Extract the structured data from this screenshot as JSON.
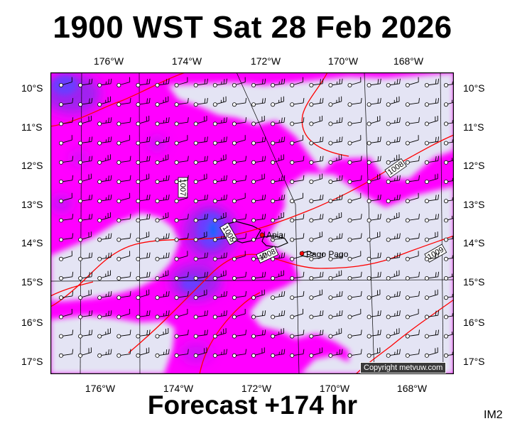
{
  "title": "1900 WST Sat 28 Feb 2026",
  "footer": "Forecast +174 hr",
  "corner_code": "IM2",
  "copyright": "Copyright metvuw.com",
  "lon_labels": [
    "176°W",
    "174°W",
    "172°W",
    "170°W",
    "168°W"
  ],
  "lat_labels": [
    "10°S",
    "11°S",
    "12°S",
    "13°S",
    "14°S",
    "15°S",
    "16°S",
    "17°S"
  ],
  "places": [
    {
      "name": "Apia",
      "lon": -171.76,
      "lat": -13.83
    },
    {
      "name": "Pago Pago",
      "lon": -170.7,
      "lat": -14.28
    }
  ],
  "isobars": [
    {
      "label": "1007",
      "pressure": 1007
    },
    {
      "label": "1008",
      "pressure": 1008
    },
    {
      "label": "1008",
      "pressure": 1008
    },
    {
      "label": "1008",
      "pressure": 1008
    },
    {
      "label": "1009",
      "pressure": 1009
    }
  ],
  "colors": {
    "background": "#ffffff",
    "no_rain": "#e4e4f4",
    "rain_light": "#ff00ff",
    "rain_moderate": "#a020f0",
    "rain_heavy": "#6a3cff",
    "rain_intense": "#2060ff",
    "isobar": "#ff0000",
    "land": "#ff0000",
    "wind_barb": "#000000"
  }
}
